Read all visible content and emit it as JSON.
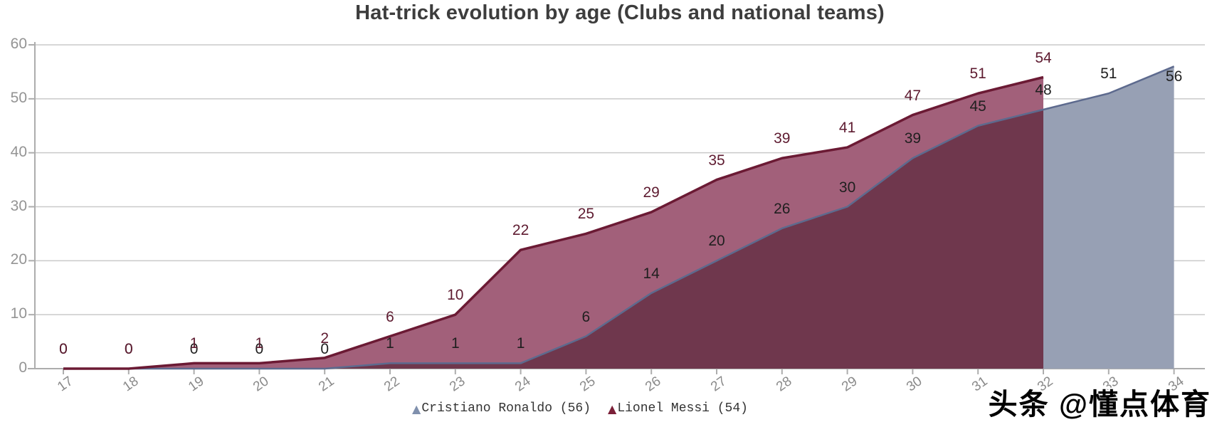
{
  "title": "Hat-trick evolution by age (Clubs and national teams)",
  "watermark": "头条 @懂点体育",
  "legend": {
    "items": [
      {
        "label": "Cristiano Ronaldo (56)",
        "marker": "triangle",
        "color": "#8090ad"
      },
      {
        "label": "Lionel Messi (54)",
        "marker": "triangle",
        "color": "#7b2038"
      }
    ]
  },
  "chart_data": {
    "type": "area",
    "title": "Hat-trick evolution by age (Clubs and national teams)",
    "x": [
      17,
      18,
      19,
      20,
      21,
      22,
      23,
      24,
      25,
      26,
      27,
      28,
      29,
      30,
      31,
      32,
      33,
      34
    ],
    "xlabel": "",
    "ylabel": "",
    "ylim": [
      0,
      60
    ],
    "yticks": [
      0,
      10,
      20,
      30,
      40,
      50,
      60
    ],
    "grid": true,
    "legend_position": "bottom",
    "series": [
      {
        "name": "Cristiano Ronaldo (56)",
        "values": [
          0,
          0,
          0,
          0,
          0,
          1,
          1,
          1,
          6,
          14,
          20,
          26,
          30,
          39,
          45,
          48,
          51,
          56
        ],
        "area_color": "#97a0b4",
        "line_color": "#5d6a8e",
        "label_color": "#1f1f1f"
      },
      {
        "name": "Lionel Messi (54)",
        "values": [
          0,
          0,
          1,
          1,
          2,
          6,
          10,
          22,
          25,
          29,
          35,
          39,
          41,
          47,
          51,
          54
        ],
        "area_color": "#a2607a",
        "line_color": "#6b1a34",
        "label_color": "#5e1b30"
      }
    ],
    "overlap_color": "#6f374d",
    "grid_color": "#cacaca",
    "axis_color": "#adadad"
  }
}
